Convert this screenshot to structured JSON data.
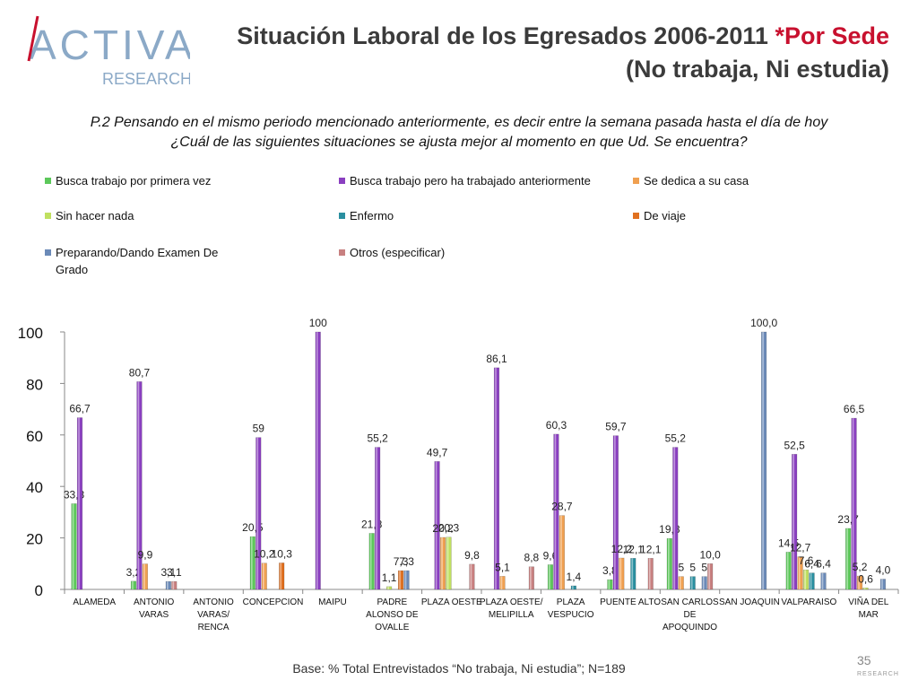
{
  "logo": {
    "brand": "ACTIVA",
    "sub": "RESEARCH"
  },
  "title": {
    "line1_main": "Situación Laboral de los Egresados 2006-2011 ",
    "line1_accent": "*Por Sede",
    "line2": "(No trabaja, Ni estudia)"
  },
  "question": {
    "line1": "P.2  Pensando en el mismo periodo mencionado anteriormente, es decir entre la semana pasada hasta el día de hoy",
    "line2": "¿Cuál de las siguientes situaciones se ajusta mejor al momento en que Ud. Se encuentra?"
  },
  "colors": {
    "s1": "#5cc85a",
    "s2": "#8a3fc0",
    "s3": "#f0a050",
    "s4": "#c0e060",
    "s5": "#2a8fa0",
    "s6": "#e07020",
    "s7": "#6b8ab8",
    "s8": "#c88080"
  },
  "chart_data": {
    "type": "bar",
    "ylim": [
      0,
      100
    ],
    "yticks": [
      "0",
      "20",
      "40",
      "60",
      "80",
      "100"
    ],
    "categories": [
      [
        "ALAMEDA"
      ],
      [
        "ANTONIO",
        "VARAS"
      ],
      [
        "ANTONIO",
        "VARAS/",
        "RENCA"
      ],
      [
        "CONCEPCION"
      ],
      [
        "MAIPU"
      ],
      [
        "PADRE",
        "ALONSO DE",
        "OVALLE"
      ],
      [
        "PLAZA OESTE"
      ],
      [
        "PLAZA OESTE/",
        "MELIPILLA"
      ],
      [
        "PLAZA",
        "VESPUCIO"
      ],
      [
        "PUENTE ALTO"
      ],
      [
        "SAN CARLOS",
        "DE",
        "APOQUINDO"
      ],
      [
        "SAN JOAQUIN"
      ],
      [
        "VALPARAISO"
      ],
      [
        "VIÑA DEL",
        "MAR"
      ]
    ],
    "series": [
      {
        "name": "Busca trabajo por primera vez",
        "values": [
          33.3,
          3.2,
          null,
          20.5,
          null,
          21.8,
          null,
          null,
          9.6,
          3.8,
          19.8,
          null,
          14.5,
          23.7
        ],
        "labels": [
          "33,3",
          "3,2",
          "",
          "20,5",
          "",
          "21,8",
          "",
          "",
          "9,6",
          "3,8",
          "19,8",
          "",
          "14,5",
          "23,7"
        ]
      },
      {
        "name": "Busca trabajo pero ha trabajado anteriormente",
        "values": [
          66.7,
          80.7,
          null,
          59,
          100,
          55.2,
          49.7,
          86.1,
          60.3,
          59.7,
          55.2,
          null,
          52.5,
          66.5
        ],
        "labels": [
          "66,7",
          "80,7",
          "",
          "59",
          "100",
          "55,2",
          "49,7",
          "86,1",
          "60,3",
          "59,7",
          "55,2",
          "",
          "52,5",
          "66,5"
        ]
      },
      {
        "name": "Se dedica a su casa",
        "values": [
          null,
          9.9,
          null,
          10.2,
          null,
          null,
          20.2,
          5.1,
          28.7,
          12.2,
          5,
          null,
          12.7,
          5.2
        ],
        "labels": [
          "",
          "9,9",
          "",
          "10,2",
          "",
          "",
          "20,2",
          "5,1",
          "28,7",
          "12,2",
          "5",
          "",
          "12,7",
          "5,2"
        ]
      },
      {
        "name": "Sin hacer nada",
        "values": [
          null,
          null,
          null,
          null,
          null,
          1.1,
          20.3,
          null,
          null,
          null,
          null,
          null,
          7.6,
          0.6
        ],
        "labels": [
          "",
          "",
          "",
          "",
          "",
          "1,1",
          "20,3",
          "",
          "",
          "",
          "",
          "",
          "7,6",
          "0,6"
        ]
      },
      {
        "name": "Enfermo",
        "values": [
          null,
          null,
          null,
          null,
          null,
          null,
          null,
          null,
          1.4,
          12.1,
          5,
          null,
          6.4,
          null
        ],
        "labels": [
          "",
          "",
          "",
          "",
          "",
          "",
          "",
          "",
          "1,4",
          "12,1",
          "5",
          "",
          "6,4",
          ""
        ]
      },
      {
        "name": "De viaje",
        "values": [
          null,
          null,
          null,
          10.3,
          null,
          7.3,
          null,
          null,
          null,
          null,
          null,
          null,
          null,
          null
        ],
        "labels": [
          "",
          "",
          "",
          "10,3",
          "",
          "7,3",
          "",
          "",
          "",
          "",
          "",
          "",
          "",
          ""
        ]
      },
      {
        "name": "Preparando/Dando Examen De Grado",
        "values": [
          null,
          3.1,
          null,
          null,
          null,
          7.3,
          null,
          null,
          null,
          null,
          5,
          100,
          6.4,
          4
        ],
        "labels": [
          "",
          "3,1",
          "",
          "",
          "",
          "7,3",
          "",
          "",
          "",
          "",
          "5",
          "100,0",
          "6,4",
          "4,0"
        ]
      },
      {
        "name": "Otros (especificar)",
        "values": [
          null,
          3.1,
          null,
          null,
          null,
          null,
          9.8,
          8.8,
          null,
          12.1,
          10,
          null,
          null,
          null
        ],
        "labels": [
          "",
          "3,1",
          "",
          "",
          "",
          "",
          "9,8",
          "8,8",
          "",
          "12,1",
          "10,0",
          "",
          "",
          ""
        ]
      }
    ]
  },
  "legend": [
    {
      "label": "Busca trabajo por primera vez",
      "color_key": "s1"
    },
    {
      "label": "Busca trabajo pero ha trabajado anteriormente",
      "color_key": "s2"
    },
    {
      "label": "Se dedica a su casa",
      "color_key": "s3"
    },
    {
      "label": "Sin hacer nada",
      "color_key": "s4"
    },
    {
      "label": "Enfermo",
      "color_key": "s5"
    },
    {
      "label": "De viaje",
      "color_key": "s6"
    },
    {
      "label": "Preparando/Dando Examen De Grado",
      "color_key": "s7"
    },
    {
      "label": "Otros (especificar)",
      "color_key": "s8"
    }
  ],
  "footer": "Base: % Total Entrevistados “No trabaja, Ni estudia”; N=189",
  "page_number": "35",
  "page_brand": "RESEARCH"
}
